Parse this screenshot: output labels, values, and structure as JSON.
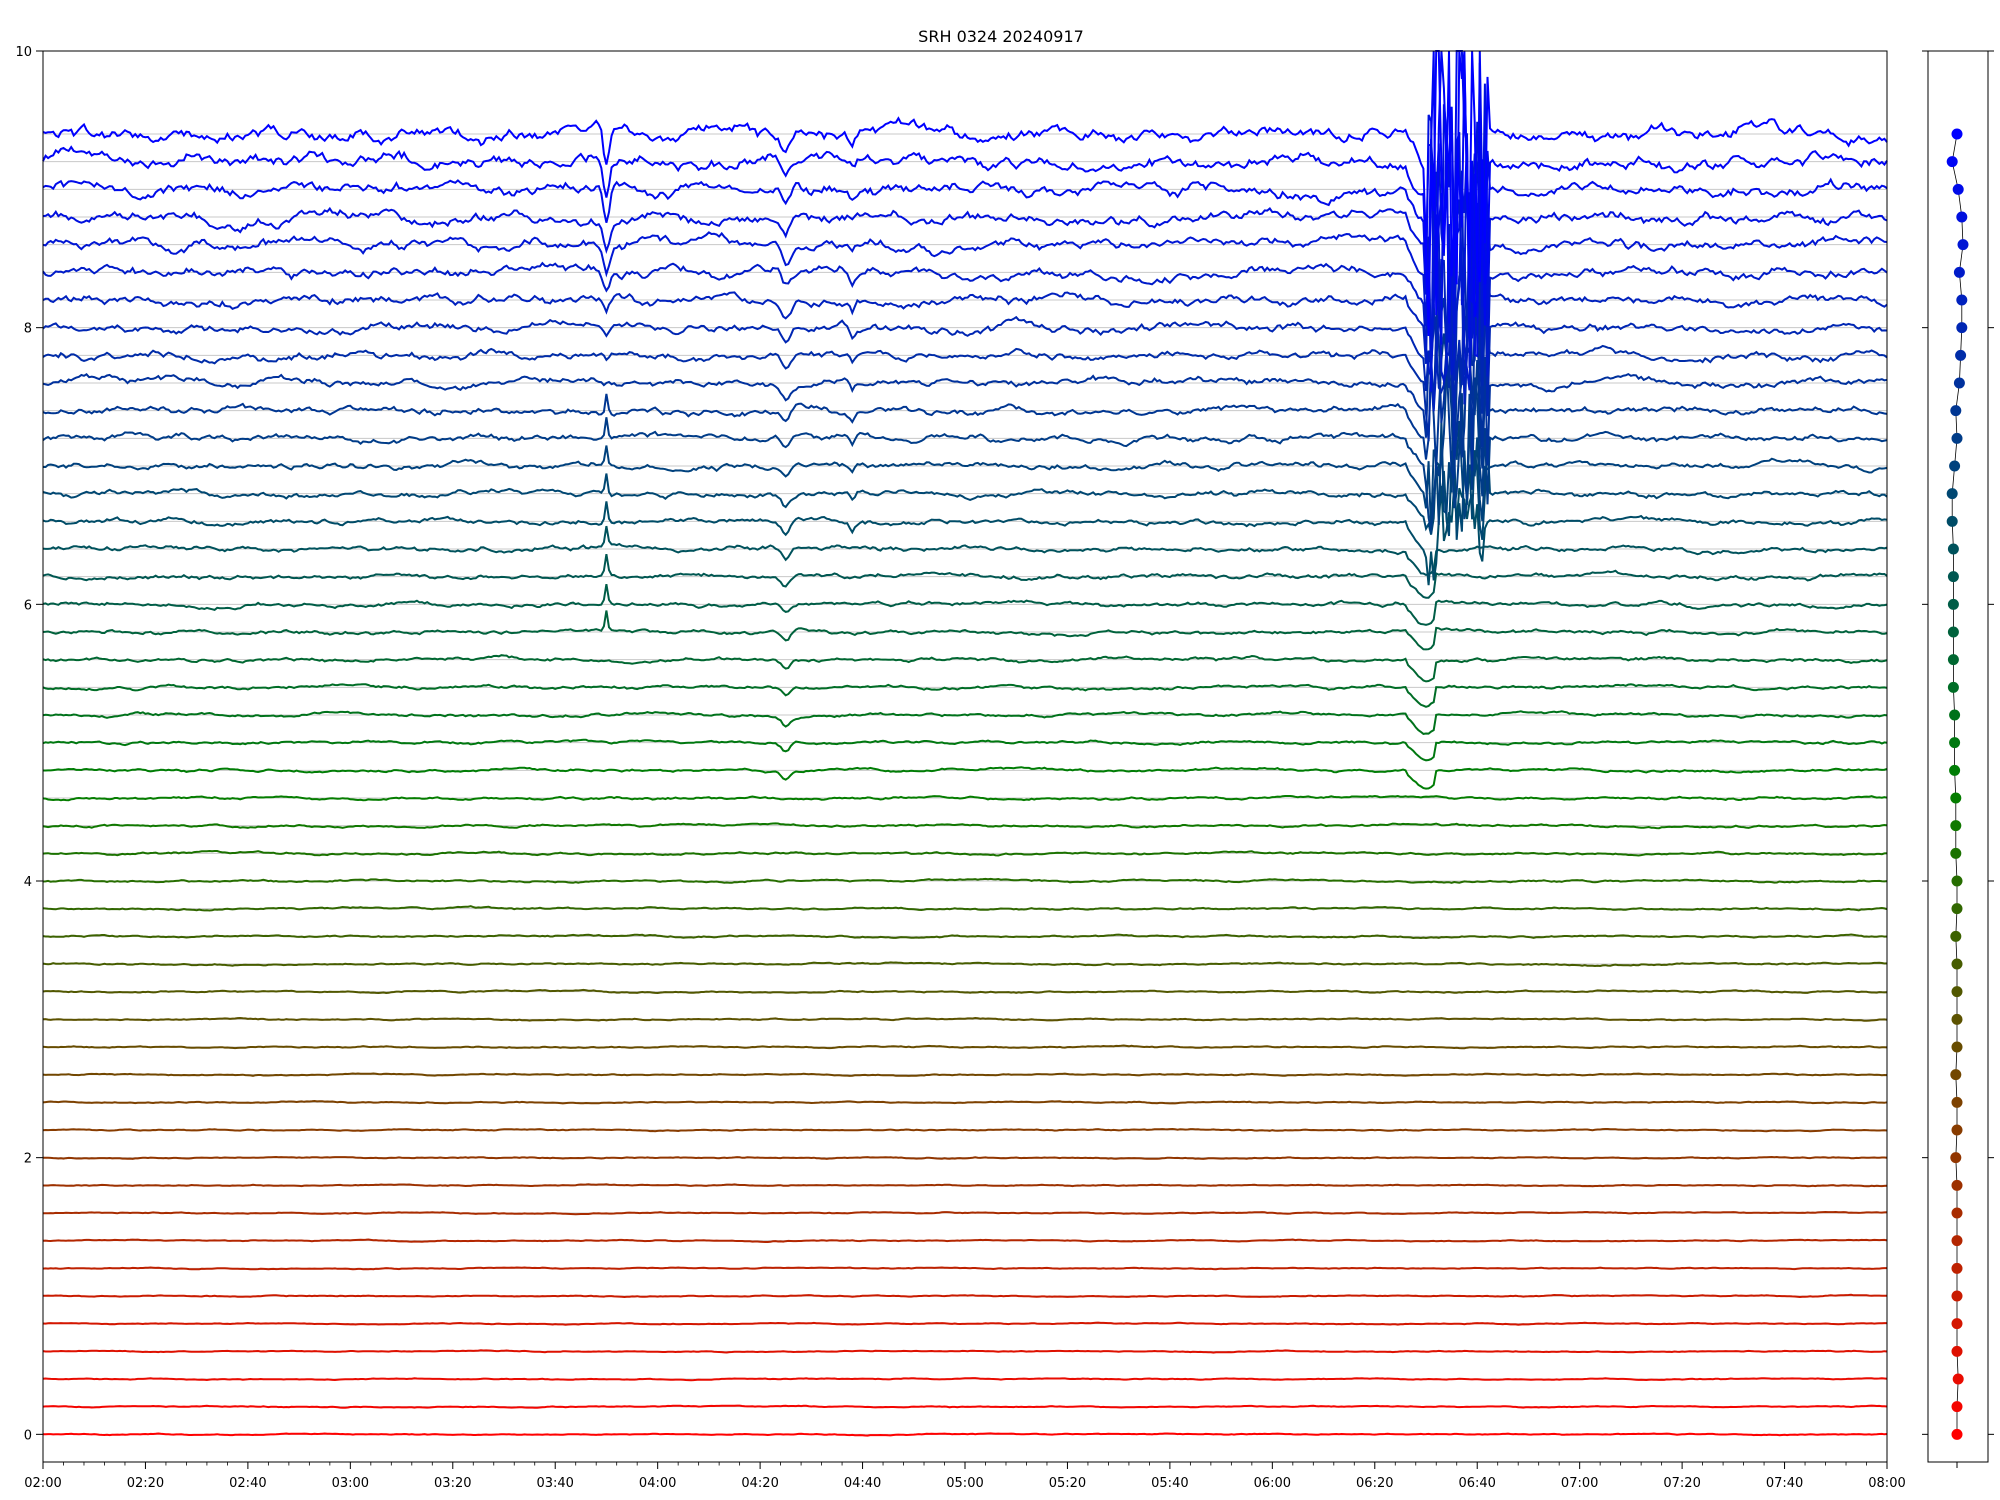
{
  "chart_data": [
    {
      "type": "line",
      "title": "SRH 0324 20240917",
      "xlabel": "",
      "ylabel": "",
      "x_range": [
        "02:00",
        "08:00"
      ],
      "ylim": [
        -0.2,
        10
      ],
      "x_tick_labels": [
        "02:00",
        "02:20",
        "02:40",
        "03:00",
        "03:20",
        "03:40",
        "04:00",
        "04:20",
        "04:40",
        "05:00",
        "05:20",
        "05:40",
        "06:00",
        "06:20",
        "06:40",
        "07:00",
        "07:20",
        "07:40",
        "08:00"
      ],
      "y_tick_labels": [
        "0",
        "2",
        "4",
        "6",
        "8",
        "10"
      ],
      "grid": "horizontal lines at each trace baseline",
      "series_count": 48,
      "baseline_spacing": 0.2,
      "series_baselines": [
        0.0,
        0.2,
        0.4,
        0.6,
        0.8,
        1.0,
        1.2,
        1.4,
        1.6,
        1.8,
        2.0,
        2.2,
        2.4,
        2.6,
        2.8,
        3.0,
        3.2,
        3.4,
        3.6,
        3.8,
        4.0,
        4.2,
        4.4,
        4.6,
        4.8,
        5.0,
        5.2,
        5.4,
        5.6,
        5.8,
        6.0,
        6.2,
        6.4,
        6.6,
        6.8,
        7.0,
        7.2,
        7.4,
        7.6,
        7.8,
        8.0,
        8.2,
        8.4,
        8.6,
        8.8,
        9.0,
        9.2,
        9.4
      ],
      "color_range": [
        "#ff0000",
        "#008000",
        "#0000ff"
      ],
      "events": [
        {
          "time": "03:50",
          "note": "dip in upper traces, spike in green traces"
        },
        {
          "time": "04:25",
          "note": "dip in middle traces"
        },
        {
          "time": "04:38",
          "note": "small feature in upper traces"
        },
        {
          "time": "06:30-06:42",
          "note": "large-amplitude burst, strongest in blue traces"
        }
      ]
    },
    {
      "type": "scatter",
      "description_label": "",
      "points_count": 48,
      "ylim": [
        -0.2,
        10
      ],
      "point_offsets": [
        0.0,
        0.0,
        0.01,
        0.0,
        0.0,
        0.0,
        0.0,
        0.0,
        0.0,
        0.0,
        -0.01,
        0.0,
        0.0,
        -0.01,
        0.0,
        0.0,
        0.0,
        0.0,
        -0.01,
        0.0,
        0.0,
        -0.01,
        -0.01,
        -0.01,
        -0.02,
        -0.02,
        -0.02,
        -0.03,
        -0.03,
        -0.03,
        -0.03,
        -0.03,
        -0.03,
        -0.04,
        -0.04,
        -0.02,
        0.0,
        -0.01,
        0.02,
        0.03,
        0.04,
        0.04,
        0.02,
        0.05,
        0.04,
        0.01,
        -0.04,
        0.0
      ]
    }
  ]
}
